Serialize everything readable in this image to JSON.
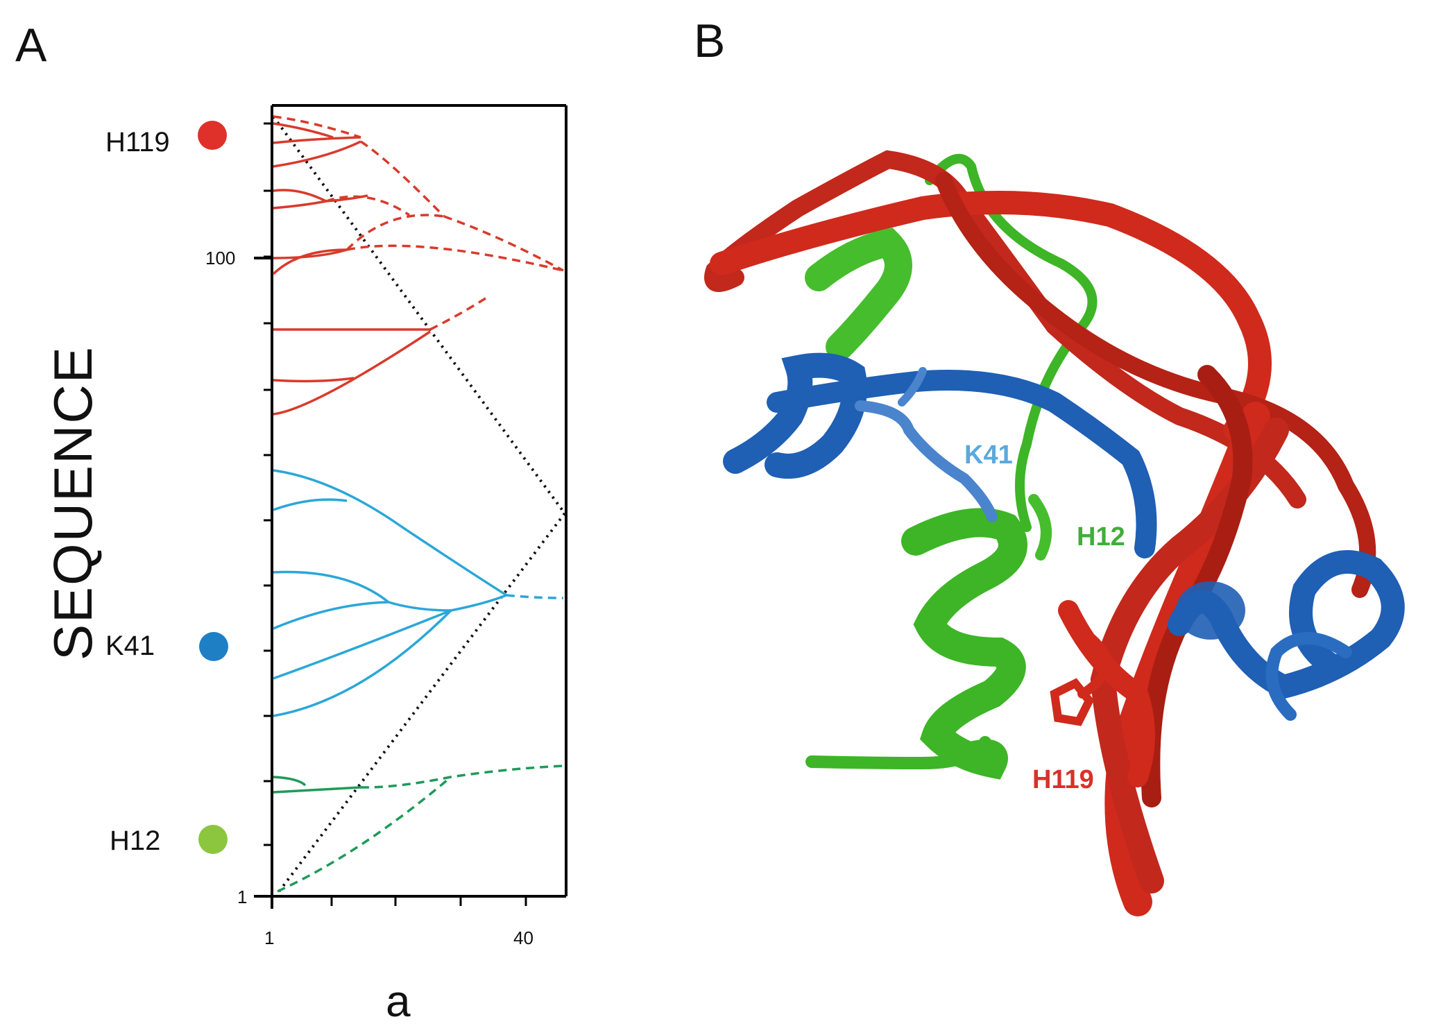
{
  "panels": {
    "a": {
      "letter": "A"
    },
    "b": {
      "letter": "B"
    }
  },
  "dendrogram": {
    "y_axis_title": "SEQUENCE",
    "x_axis_title": "a",
    "y_ticks": [
      "100",
      "1"
    ],
    "x_ticks": [
      "1",
      "40"
    ],
    "residues": [
      {
        "label": "H119",
        "color": "#e0302a"
      },
      {
        "label": "K41",
        "color": "#1f7fc4"
      },
      {
        "label": "H12",
        "color": "#8cc63f"
      }
    ],
    "branch_colors": {
      "red": "#d93a2b",
      "cyan": "#2aa7d8",
      "green": "#1f9a5a"
    }
  },
  "structure": {
    "labels": [
      {
        "label": "K41",
        "color": "#5aa9dc"
      },
      {
        "label": "H12",
        "color": "#3faf3a"
      },
      {
        "label": "H119",
        "color": "#d9312b"
      }
    ],
    "ribbon_colors": {
      "red": "#cf2a1c",
      "green": "#3db526",
      "blue": "#1f5fb4"
    }
  }
}
